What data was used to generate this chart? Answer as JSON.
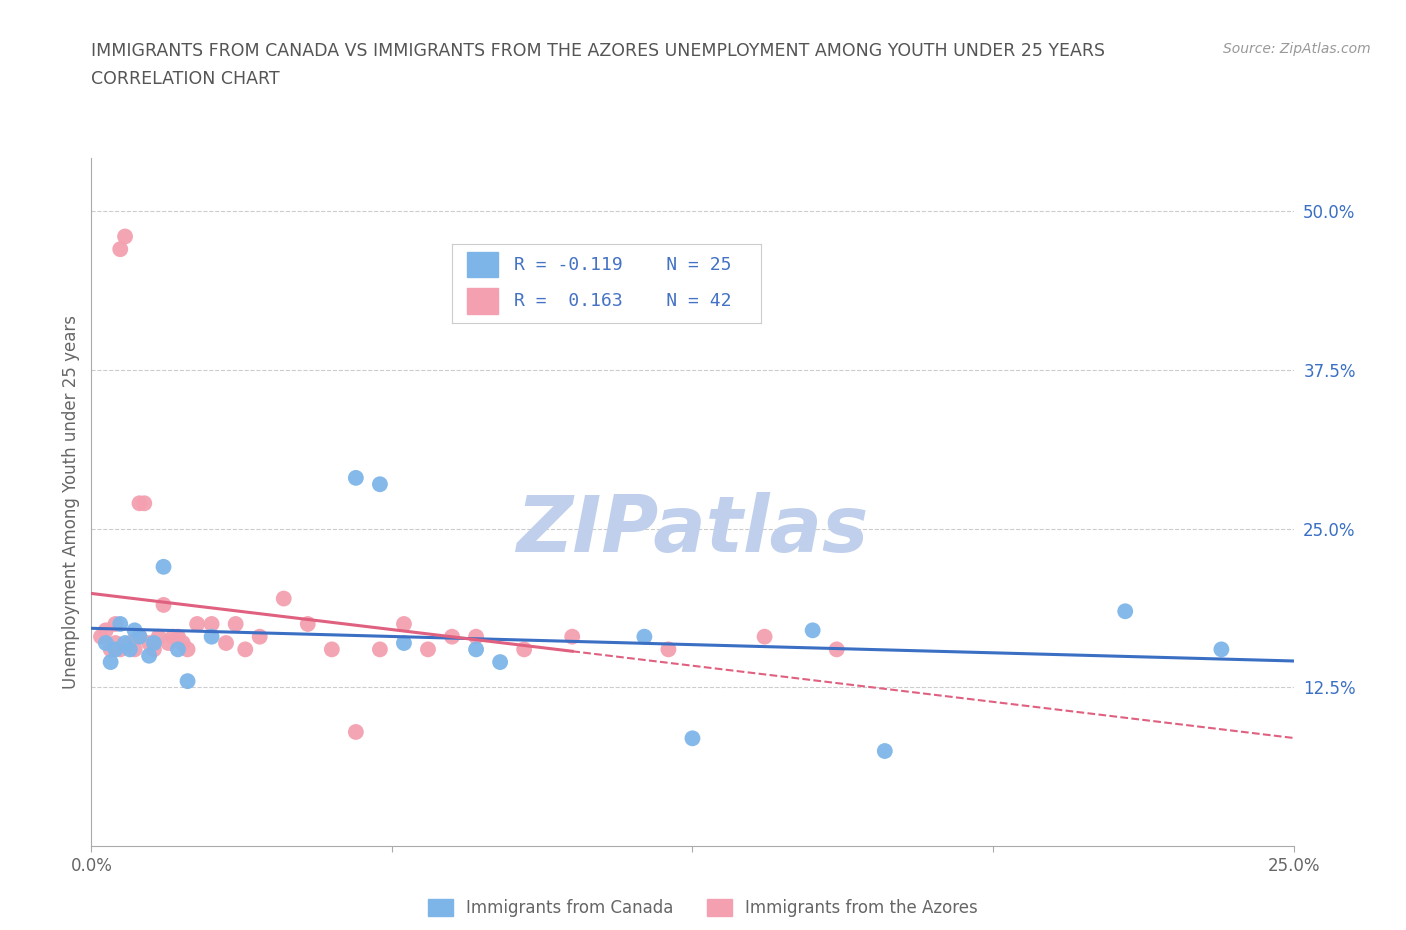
{
  "title_line1": "IMMIGRANTS FROM CANADA VS IMMIGRANTS FROM THE AZORES UNEMPLOYMENT AMONG YOUTH UNDER 25 YEARS",
  "title_line2": "CORRELATION CHART",
  "source_text": "Source: ZipAtlas.com",
  "ylabel": "Unemployment Among Youth under 25 years",
  "xlim": [
    0.0,
    0.25
  ],
  "ylim": [
    0.0,
    0.5417
  ],
  "ytick_right_labels": [
    "12.5%",
    "25.0%",
    "37.5%",
    "50.0%"
  ],
  "ytick_right_values": [
    0.125,
    0.25,
    0.375,
    0.5
  ],
  "canada_color": "#7EB5E8",
  "azores_color": "#F4A0B0",
  "canada_line_color": "#3A6FC4",
  "azores_line_color": "#E06080",
  "legend_text_color": "#4472C4",
  "canada_R": -0.119,
  "canada_N": 25,
  "azores_R": 0.163,
  "azores_N": 42,
  "canada_scatter_x": [
    0.003,
    0.004,
    0.005,
    0.006,
    0.007,
    0.008,
    0.009,
    0.01,
    0.012,
    0.013,
    0.015,
    0.018,
    0.02,
    0.025,
    0.055,
    0.06,
    0.065,
    0.08,
    0.085,
    0.115,
    0.125,
    0.15,
    0.165,
    0.215,
    0.235
  ],
  "canada_scatter_y": [
    0.16,
    0.145,
    0.155,
    0.175,
    0.16,
    0.155,
    0.17,
    0.165,
    0.15,
    0.16,
    0.22,
    0.155,
    0.13,
    0.165,
    0.29,
    0.285,
    0.16,
    0.155,
    0.145,
    0.165,
    0.085,
    0.17,
    0.075,
    0.185,
    0.155
  ],
  "azores_scatter_x": [
    0.002,
    0.003,
    0.004,
    0.005,
    0.005,
    0.006,
    0.006,
    0.007,
    0.008,
    0.009,
    0.01,
    0.01,
    0.011,
    0.012,
    0.013,
    0.014,
    0.015,
    0.016,
    0.017,
    0.018,
    0.019,
    0.02,
    0.022,
    0.025,
    0.028,
    0.03,
    0.032,
    0.035,
    0.04,
    0.045,
    0.05,
    0.055,
    0.06,
    0.065,
    0.07,
    0.075,
    0.08,
    0.09,
    0.1,
    0.12,
    0.14,
    0.155
  ],
  "azores_scatter_y": [
    0.165,
    0.17,
    0.155,
    0.16,
    0.175,
    0.155,
    0.47,
    0.48,
    0.16,
    0.155,
    0.165,
    0.27,
    0.27,
    0.16,
    0.155,
    0.165,
    0.19,
    0.16,
    0.165,
    0.165,
    0.16,
    0.155,
    0.175,
    0.175,
    0.16,
    0.175,
    0.155,
    0.165,
    0.195,
    0.175,
    0.155,
    0.09,
    0.155,
    0.175,
    0.155,
    0.165,
    0.165,
    0.155,
    0.165,
    0.155,
    0.165,
    0.155
  ],
  "watermark": "ZIPatlas",
  "watermark_color": "#C0D0EC",
  "background_color": "#FFFFFF",
  "grid_color": "#CCCCCC",
  "title_color": "#555555",
  "axis_color": "#666666"
}
